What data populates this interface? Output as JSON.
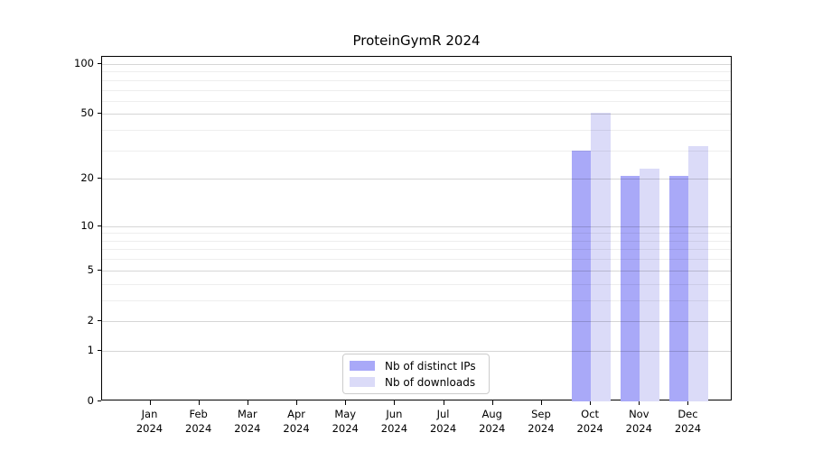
{
  "title": "ProteinGymR 2024",
  "chart_data": {
    "type": "bar",
    "title": "ProteinGymR 2024",
    "xlabel": "",
    "ylabel": "",
    "x_tick_line1": [
      "Jan",
      "Feb",
      "Mar",
      "Apr",
      "May",
      "Jun",
      "Jul",
      "Aug",
      "Sep",
      "Oct",
      "Nov",
      "Dec"
    ],
    "x_tick_line2": "2024",
    "categories": [
      "Jan 2024",
      "Feb 2024",
      "Mar 2024",
      "Apr 2024",
      "May 2024",
      "Jun 2024",
      "Jul 2024",
      "Aug 2024",
      "Sep 2024",
      "Oct 2024",
      "Nov 2024",
      "Dec 2024"
    ],
    "series": [
      {
        "name": "Nb of distinct IPs",
        "color": "#a9a9f8",
        "values": [
          0,
          0,
          0,
          0,
          0,
          0,
          0,
          0,
          0,
          30,
          21,
          21
        ]
      },
      {
        "name": "Nb of downloads",
        "color": "#dbdbf8",
        "values": [
          0,
          0,
          0,
          0,
          0,
          0,
          0,
          0,
          0,
          51,
          23,
          32
        ]
      }
    ],
    "y_scale": "log1p",
    "y_ticks": [
      0,
      1,
      2,
      5,
      10,
      20,
      50,
      100
    ],
    "y_minor_ticks": [
      3,
      4,
      6,
      7,
      8,
      9,
      30,
      40,
      60,
      70,
      80,
      90
    ],
    "ylim": [
      0,
      110
    ],
    "grid": "horizontal",
    "legend_position": "lower center (inside plot)"
  },
  "colors": {
    "major_grid": "rgba(0,0,0,0.16)",
    "minor_grid": "rgba(0,0,0,0.065)",
    "spine": "#000000",
    "series_dark": "#a9a9f8",
    "series_light": "#dbdbf8"
  }
}
